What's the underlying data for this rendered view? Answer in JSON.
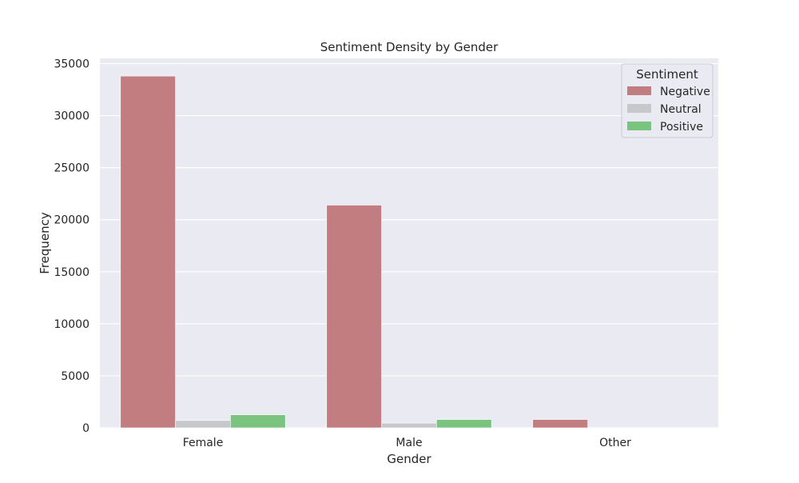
{
  "chart_data": {
    "type": "bar",
    "title": "Sentiment Density by Gender",
    "xlabel": "Gender",
    "ylabel": "Frequency",
    "categories": [
      "Female",
      "Male",
      "Other"
    ],
    "ylim": [
      0,
      35500
    ],
    "yticks": [
      0,
      5000,
      10000,
      15000,
      20000,
      25000,
      30000,
      35000
    ],
    "grid": true,
    "legend": {
      "title": "Sentiment",
      "placement": "top-right"
    },
    "series": [
      {
        "name": "Negative",
        "color": "#c17d7f",
        "values": [
          33800,
          21400,
          800
        ]
      },
      {
        "name": "Neutral",
        "color": "#c8c7cb",
        "values": [
          700,
          450,
          0
        ]
      },
      {
        "name": "Positive",
        "color": "#7bc47f",
        "values": [
          1250,
          800,
          0
        ]
      }
    ]
  }
}
